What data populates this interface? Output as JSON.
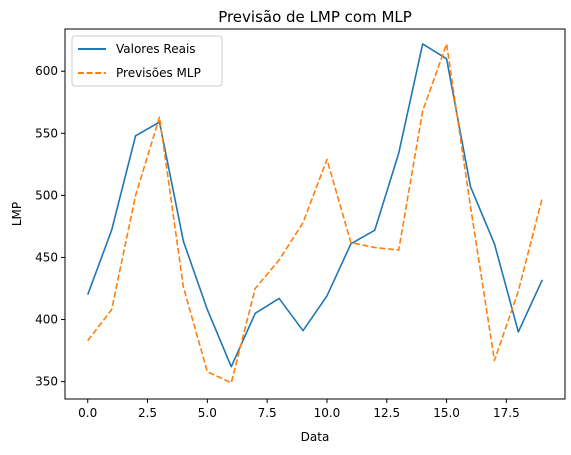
{
  "chart_data": {
    "type": "line",
    "title": "Previsão de LMP com MLP",
    "xlabel": "Data",
    "ylabel": "LMP",
    "x": [
      0,
      1,
      2,
      3,
      4,
      5,
      6,
      7,
      8,
      9,
      10,
      11,
      12,
      13,
      14,
      15,
      16,
      17,
      18,
      19
    ],
    "xlim": [
      -0.95,
      19.95
    ],
    "ylim": [
      336,
      634
    ],
    "x_ticks": [
      0,
      2.5,
      5,
      7.5,
      10,
      12.5,
      15,
      17.5
    ],
    "x_tick_labels": [
      "0.0",
      "2.5",
      "5.0",
      "7.5",
      "10.0",
      "12.5",
      "15.0",
      "17.5"
    ],
    "y_ticks": [
      350,
      400,
      450,
      500,
      550,
      600
    ],
    "y_tick_labels": [
      "350",
      "400",
      "450",
      "500",
      "550",
      "600"
    ],
    "grid": false,
    "legend_position": "top-left",
    "series": [
      {
        "name": "Valores Reais",
        "color": "#1f77b4",
        "style": "solid",
        "values": [
          420,
          472,
          548,
          559,
          463,
          408,
          362,
          405,
          417,
          391,
          419,
          461,
          472,
          534,
          622,
          610,
          507,
          461,
          390,
          432
        ]
      },
      {
        "name": "Previsões MLP",
        "color": "#ff7f0e",
        "style": "dashed",
        "values": [
          383,
          408,
          500,
          563,
          426,
          358,
          349,
          425,
          448,
          478,
          529,
          462,
          458,
          456,
          568,
          622,
          491,
          367,
          423,
          498
        ]
      }
    ]
  }
}
